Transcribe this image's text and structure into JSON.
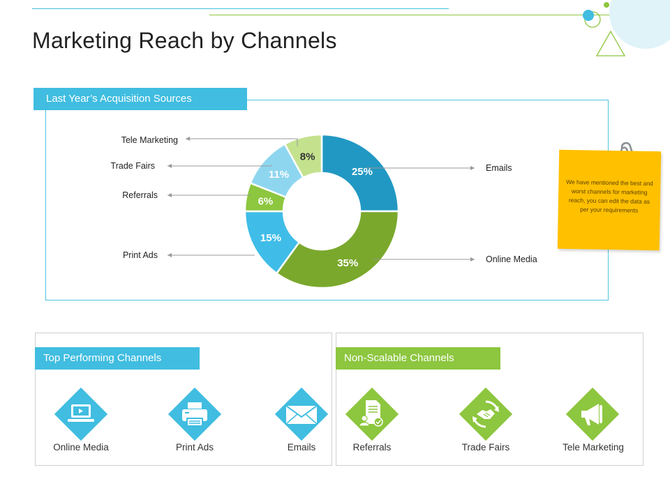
{
  "slide": {
    "title": "Marketing Reach by Channels"
  },
  "chart_panel": {
    "tab_label": "Last Year’s Acquisition Sources"
  },
  "chart_data": {
    "type": "pie",
    "donut": true,
    "title": "",
    "categories": [
      "Emails",
      "Online Media",
      "Print Ads",
      "Referrals",
      "Trade Fairs",
      "Tele Marketing"
    ],
    "values": [
      25,
      35,
      15,
      6,
      11,
      8
    ],
    "value_labels": [
      "25%",
      "35%",
      "15%",
      "6%",
      "11%",
      "8%"
    ],
    "colors": [
      "#2198c3",
      "#7aa82c",
      "#3fbde8",
      "#8dc63f",
      "#8ed6ef",
      "#c4e28e"
    ],
    "label_colors": [
      "#ffffff",
      "#ffffff",
      "#ffffff",
      "#ffffff",
      "#ffffff",
      "#333333"
    ],
    "start_angle_deg": 0,
    "direction": "clockwise"
  },
  "note": {
    "text": "We have mentioned the best and worst channels for marketing reach, you can edit the data as per your requirements"
  },
  "top_panel": {
    "tab_label": "Top Performing Channels",
    "items": [
      {
        "label": "Online Media",
        "icon": "laptop-icon"
      },
      {
        "label": "Print Ads",
        "icon": "printer-icon"
      },
      {
        "label": "Emails",
        "icon": "envelope-icon"
      }
    ]
  },
  "nonscalable_panel": {
    "tab_label": "Non-Scalable Channels",
    "items": [
      {
        "label": "Referrals",
        "icon": "document-check-icon"
      },
      {
        "label": "Trade Fairs",
        "icon": "handshake-icon"
      },
      {
        "label": "Tele Marketing",
        "icon": "megaphone-icon"
      }
    ]
  },
  "theme": {
    "blue": "#40bde0",
    "green": "#8dc63f",
    "sticky": "#ffc000"
  }
}
